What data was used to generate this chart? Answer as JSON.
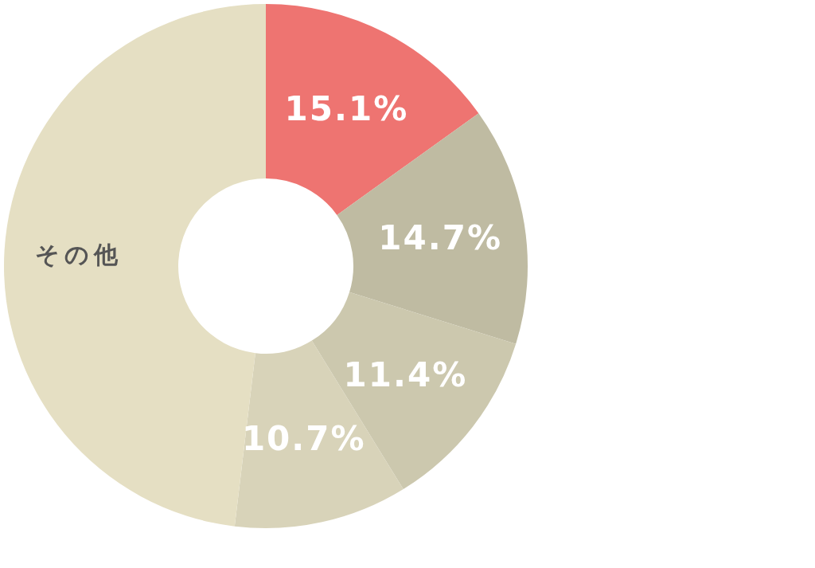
{
  "chart_data": {
    "type": "donut",
    "categories": [
      null,
      null,
      null,
      null,
      "その他"
    ],
    "values": [
      15.1,
      14.7,
      11.4,
      10.7,
      48.1
    ],
    "colors": [
      "#ee7471",
      "#bfbba2",
      "#ccc8ae",
      "#d8d3b9",
      "#e5dfc3"
    ],
    "value_labels": [
      "15.1%",
      "14.7%",
      "11.4%",
      "10.7%",
      null
    ]
  }
}
